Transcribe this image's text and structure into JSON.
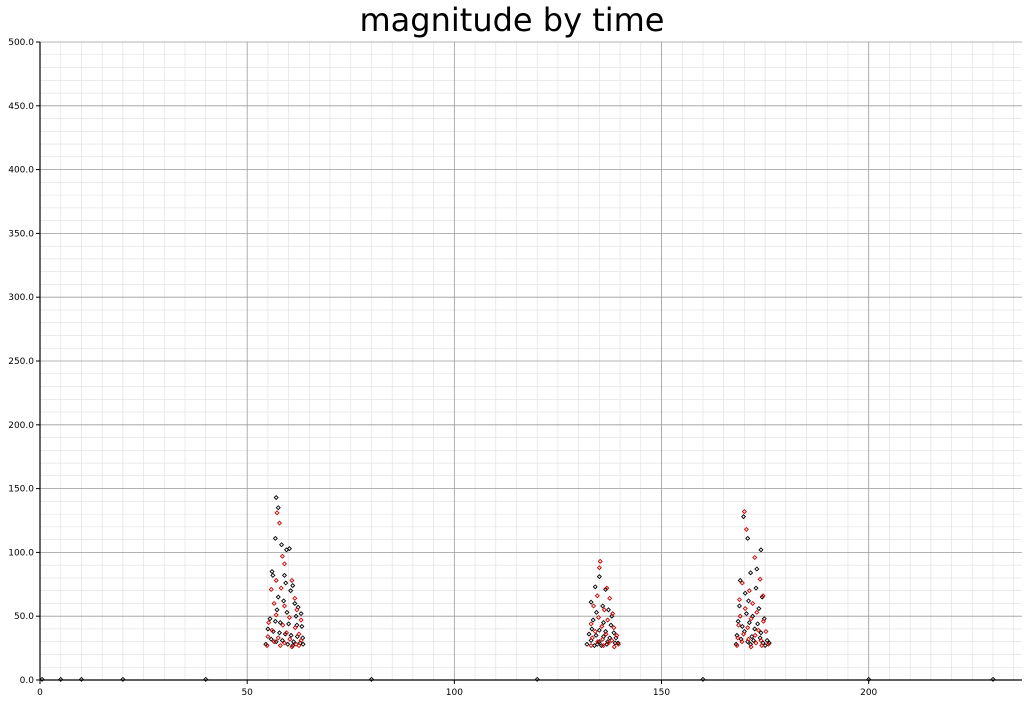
{
  "chart_data": {
    "type": "scatter",
    "title": "magnitude by time",
    "xlabel": "",
    "ylabel": "",
    "xlim": [
      0,
      237
    ],
    "ylim": [
      0,
      500
    ],
    "grid": true,
    "x_ticks": [
      "0",
      "50",
      "100",
      "150",
      "200"
    ],
    "y_ticks": [
      "0.0",
      "50.0",
      "100.0",
      "150.0",
      "200.0",
      "250.0",
      "300.0",
      "350.0",
      "400.0",
      "450.0",
      "500.0"
    ],
    "colors": {
      "series_a": "#000000",
      "series_b": "#cc0000"
    },
    "series": [
      {
        "color": "#000000",
        "points": [
          [
            57.0,
            143
          ],
          [
            57.5,
            135
          ],
          [
            56.8,
            111
          ],
          [
            58.3,
            106
          ],
          [
            59.5,
            102
          ],
          [
            60.2,
            103
          ],
          [
            56.0,
            85
          ],
          [
            56.2,
            82
          ],
          [
            59.0,
            82
          ],
          [
            59.3,
            76
          ],
          [
            61.0,
            74
          ],
          [
            60.5,
            70
          ],
          [
            57.5,
            65
          ],
          [
            58.8,
            62
          ],
          [
            61.5,
            60
          ],
          [
            62.3,
            57
          ],
          [
            57.2,
            55
          ],
          [
            59.6,
            53
          ],
          [
            61.8,
            50
          ],
          [
            63.0,
            52
          ],
          [
            55.5,
            48
          ],
          [
            56.8,
            46
          ],
          [
            58.0,
            45
          ],
          [
            60.0,
            44
          ],
          [
            62.0,
            43
          ],
          [
            63.2,
            42
          ],
          [
            55.0,
            40
          ],
          [
            56.3,
            38
          ],
          [
            57.8,
            37
          ],
          [
            59.2,
            36
          ],
          [
            60.6,
            35
          ],
          [
            62.1,
            34
          ],
          [
            63.4,
            33
          ],
          [
            55.8,
            32
          ],
          [
            58.5,
            31
          ],
          [
            61.2,
            30
          ],
          [
            62.8,
            29
          ],
          [
            54.5,
            28
          ],
          [
            63.5,
            28
          ],
          [
            57.0,
            30
          ],
          [
            59.8,
            28
          ],
          [
            61.0,
            27
          ],
          [
            0.5,
            0.5
          ],
          [
            5,
            0.5
          ],
          [
            10,
            0.5
          ],
          [
            20,
            0.5
          ],
          [
            40,
            0.5
          ],
          [
            80,
            0.5
          ],
          [
            120,
            0.5
          ],
          [
            160,
            0.5
          ],
          [
            200,
            0.5
          ],
          [
            230,
            0.5
          ],
          [
            135.0,
            81
          ],
          [
            134.0,
            73
          ],
          [
            136.5,
            71
          ],
          [
            133.0,
            61
          ],
          [
            135.8,
            58
          ],
          [
            137.2,
            55
          ],
          [
            134.3,
            53
          ],
          [
            138.0,
            50
          ],
          [
            133.5,
            47
          ],
          [
            136.0,
            45
          ],
          [
            137.8,
            43
          ],
          [
            133.2,
            40
          ],
          [
            135.0,
            39
          ],
          [
            136.5,
            38
          ],
          [
            138.5,
            37
          ],
          [
            132.5,
            36
          ],
          [
            134.2,
            35
          ],
          [
            136.0,
            34
          ],
          [
            137.5,
            33
          ],
          [
            139.0,
            33
          ],
          [
            133.0,
            31
          ],
          [
            135.0,
            30
          ],
          [
            137.0,
            30
          ],
          [
            138.8,
            29
          ],
          [
            132.0,
            28
          ],
          [
            134.5,
            28
          ],
          [
            136.8,
            28
          ],
          [
            139.5,
            29
          ],
          [
            135.5,
            27
          ],
          [
            133.8,
            27
          ],
          [
            169.8,
            128
          ],
          [
            170.8,
            111
          ],
          [
            174.0,
            102
          ],
          [
            173.0,
            87
          ],
          [
            171.5,
            84
          ],
          [
            169.0,
            78
          ],
          [
            172.8,
            72
          ],
          [
            170.2,
            68
          ],
          [
            174.3,
            65
          ],
          [
            171.0,
            62
          ],
          [
            168.8,
            58
          ],
          [
            173.5,
            56
          ],
          [
            170.5,
            52
          ],
          [
            172.0,
            50
          ],
          [
            174.8,
            48
          ],
          [
            168.5,
            46
          ],
          [
            171.2,
            45
          ],
          [
            173.2,
            44
          ],
          [
            169.5,
            42
          ],
          [
            172.5,
            40
          ],
          [
            170.0,
            38
          ],
          [
            174.0,
            37
          ],
          [
            168.2,
            35
          ],
          [
            171.8,
            34
          ],
          [
            173.8,
            33
          ],
          [
            169.2,
            32
          ],
          [
            172.2,
            31
          ],
          [
            175.5,
            31
          ],
          [
            170.8,
            30
          ],
          [
            174.5,
            29
          ],
          [
            168.0,
            28
          ],
          [
            171.5,
            28
          ],
          [
            176.0,
            29
          ],
          [
            175.0,
            27
          ]
        ]
      },
      {
        "color": "#cc0000",
        "points": [
          [
            57.8,
            123
          ],
          [
            57.2,
            131
          ],
          [
            58.5,
            97
          ],
          [
            59.0,
            91
          ],
          [
            57.0,
            78
          ],
          [
            55.8,
            71
          ],
          [
            60.8,
            78
          ],
          [
            58.2,
            72
          ],
          [
            61.5,
            64
          ],
          [
            56.5,
            60
          ],
          [
            59.0,
            58
          ],
          [
            62.0,
            55
          ],
          [
            57.0,
            51
          ],
          [
            60.2,
            49
          ],
          [
            63.0,
            47
          ],
          [
            55.2,
            45
          ],
          [
            58.6,
            43
          ],
          [
            61.6,
            41
          ],
          [
            56.0,
            39
          ],
          [
            59.5,
            37
          ],
          [
            62.5,
            36
          ],
          [
            55.0,
            34
          ],
          [
            57.5,
            33
          ],
          [
            60.3,
            32
          ],
          [
            63.0,
            31
          ],
          [
            56.5,
            30
          ],
          [
            59.0,
            29
          ],
          [
            61.8,
            28
          ],
          [
            54.8,
            27
          ],
          [
            58.0,
            27
          ],
          [
            60.8,
            26
          ],
          [
            62.5,
            27
          ],
          [
            135.2,
            93
          ],
          [
            135.0,
            88
          ],
          [
            136.8,
            72
          ],
          [
            134.5,
            66
          ],
          [
            137.5,
            64
          ],
          [
            133.6,
            58
          ],
          [
            136.2,
            55
          ],
          [
            138.2,
            52
          ],
          [
            134.8,
            49
          ],
          [
            137.0,
            47
          ],
          [
            133.0,
            44
          ],
          [
            135.6,
            42
          ],
          [
            138.5,
            41
          ],
          [
            134.0,
            38
          ],
          [
            136.6,
            36
          ],
          [
            139.2,
            35
          ],
          [
            133.3,
            33
          ],
          [
            135.8,
            32
          ],
          [
            138.0,
            31
          ],
          [
            134.6,
            30
          ],
          [
            137.2,
            29
          ],
          [
            139.6,
            28
          ],
          [
            133.0,
            27
          ],
          [
            136.0,
            27
          ],
          [
            138.6,
            26
          ],
          [
            170.0,
            132
          ],
          [
            170.5,
            118
          ],
          [
            172.5,
            96
          ],
          [
            169.5,
            76
          ],
          [
            173.8,
            79
          ],
          [
            171.2,
            70
          ],
          [
            168.8,
            63
          ],
          [
            174.5,
            66
          ],
          [
            172.0,
            60
          ],
          [
            170.2,
            56
          ],
          [
            173.0,
            53
          ],
          [
            169.0,
            50
          ],
          [
            171.6,
            48
          ],
          [
            174.6,
            46
          ],
          [
            168.6,
            43
          ],
          [
            170.8,
            41
          ],
          [
            173.4,
            39
          ],
          [
            175.2,
            38
          ],
          [
            169.8,
            36
          ],
          [
            172.6,
            35
          ],
          [
            168.4,
            33
          ],
          [
            171.0,
            32
          ],
          [
            174.0,
            31
          ],
          [
            169.4,
            30
          ],
          [
            172.8,
            29
          ],
          [
            175.8,
            28
          ],
          [
            168.2,
            27
          ],
          [
            171.6,
            26
          ],
          [
            174.2,
            27
          ]
        ]
      }
    ]
  }
}
